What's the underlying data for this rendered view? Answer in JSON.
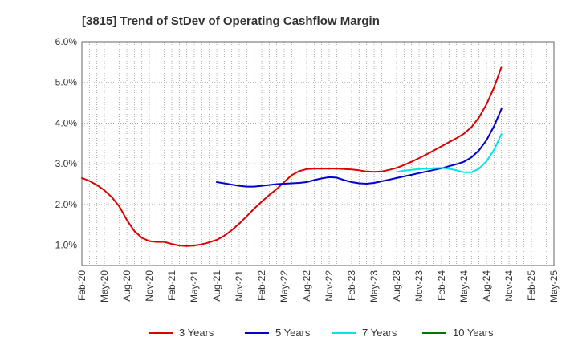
{
  "chart_data": {
    "type": "line",
    "title": "[3815]  Trend of StDev of Operating Cashflow Margin",
    "xlabel": "",
    "ylabel": "",
    "y_ticks": [
      "1.0%",
      "2.0%",
      "3.0%",
      "4.0%",
      "5.0%",
      "6.0%"
    ],
    "y_tick_values": [
      1.0,
      2.0,
      3.0,
      4.0,
      5.0,
      6.0
    ],
    "ylim": [
      0.5,
      6.0
    ],
    "x_ticks": [
      "Feb-20",
      "May-20",
      "Aug-20",
      "Nov-20",
      "Feb-21",
      "May-21",
      "Aug-21",
      "Nov-21",
      "Feb-22",
      "May-22",
      "Aug-22",
      "Nov-22",
      "Feb-23",
      "May-23",
      "Aug-23",
      "Nov-23",
      "Feb-24",
      "May-24",
      "Aug-24",
      "Nov-24",
      "Feb-25",
      "May-25"
    ],
    "grid": true,
    "legend_position": "bottom",
    "series": [
      {
        "name": "3 Years",
        "color": "#dd0000",
        "start_index": 0,
        "values": [
          2.65,
          2.58,
          2.48,
          2.35,
          2.18,
          1.95,
          1.62,
          1.35,
          1.18,
          1.1,
          1.08,
          1.08,
          1.03,
          0.99,
          0.98,
          0.99,
          1.02,
          1.07,
          1.13,
          1.23,
          1.37,
          1.53,
          1.71,
          1.9,
          2.07,
          2.23,
          2.38,
          2.55,
          2.72,
          2.82,
          2.87,
          2.88,
          2.88,
          2.88,
          2.88,
          2.87,
          2.86,
          2.84,
          2.81,
          2.8,
          2.81,
          2.85,
          2.9,
          2.97,
          3.05,
          3.14,
          3.23,
          3.33,
          3.43,
          3.53,
          3.63,
          3.74,
          3.9,
          4.14,
          4.46,
          4.87,
          5.38
        ]
      },
      {
        "name": "5 Years",
        "color": "#0000cc",
        "start_index": 18,
        "values": [
          2.55,
          2.52,
          2.49,
          2.46,
          2.44,
          2.44,
          2.46,
          2.48,
          2.5,
          2.51,
          2.52,
          2.53,
          2.55,
          2.6,
          2.64,
          2.67,
          2.66,
          2.6,
          2.55,
          2.52,
          2.51,
          2.53,
          2.57,
          2.61,
          2.65,
          2.69,
          2.73,
          2.77,
          2.81,
          2.85,
          2.89,
          2.94,
          2.99,
          3.05,
          3.16,
          3.33,
          3.58,
          3.92,
          4.35
        ]
      },
      {
        "name": "7 Years",
        "color": "#00e5e5",
        "start_index": 42,
        "values": [
          2.8,
          2.83,
          2.85,
          2.87,
          2.88,
          2.89,
          2.9,
          2.88,
          2.84,
          2.79,
          2.79,
          2.88,
          3.06,
          3.34,
          3.73
        ]
      },
      {
        "name": "10 Years",
        "color": "#007700",
        "start_index": 0,
        "values": []
      }
    ]
  }
}
